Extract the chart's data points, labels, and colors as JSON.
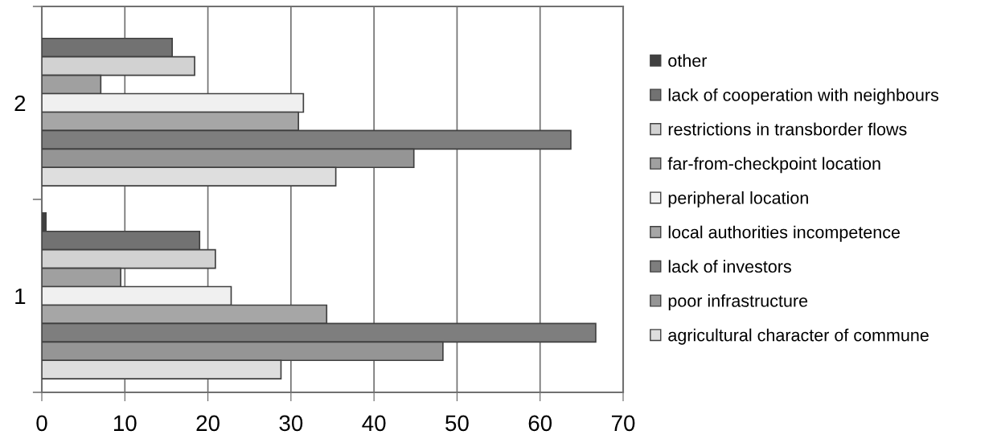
{
  "chart_data": {
    "type": "bar",
    "orientation": "horizontal",
    "categories": [
      "2",
      "1"
    ],
    "series": [
      {
        "name": "other",
        "color": "#404040",
        "values": [
          null,
          0.5
        ]
      },
      {
        "name": "lack of cooperation with neighbours",
        "color": "#727272",
        "values": [
          15.7,
          19.0
        ]
      },
      {
        "name": "restrictions in transborder flows",
        "color": "#d2d2d2",
        "values": [
          18.4,
          20.9
        ]
      },
      {
        "name": "far-from-checkpoint location",
        "color": "#a0a0a0",
        "values": [
          7.1,
          9.5
        ]
      },
      {
        "name": "peripheral location",
        "color": "#f0f0f0",
        "values": [
          31.5,
          22.8
        ]
      },
      {
        "name": "local authorities incompetence",
        "color": "#a6a6a6",
        "values": [
          30.9,
          34.3
        ]
      },
      {
        "name": "lack of investors",
        "color": "#7e7e7e",
        "values": [
          63.7,
          66.7
        ]
      },
      {
        "name": "poor infrastructure",
        "color": "#959595",
        "values": [
          44.8,
          48.3
        ]
      },
      {
        "name": "agricultural character of commune",
        "color": "#dedede",
        "values": [
          35.4,
          28.8
        ]
      }
    ],
    "xlim": [
      0,
      70
    ],
    "xticks": [
      0,
      10,
      20,
      30,
      40,
      50,
      60,
      70
    ],
    "grid": "x",
    "legend": "right"
  }
}
